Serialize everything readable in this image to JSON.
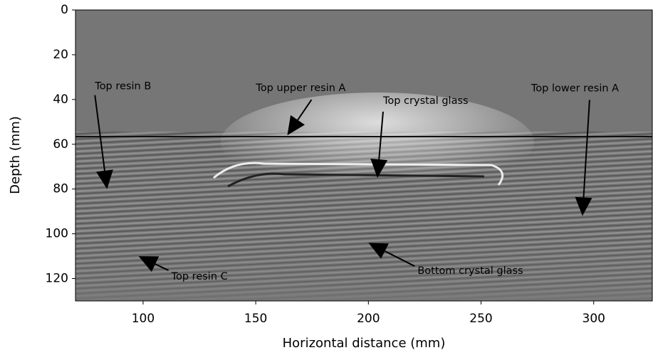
{
  "chart_data": {
    "type": "image",
    "x_label": "Horizontal distance (mm)",
    "y_label": "Depth (mm)",
    "xlim": [
      70,
      326
    ],
    "ylim": [
      130,
      0
    ],
    "xticks": [
      100,
      150,
      200,
      250,
      300
    ],
    "yticks": [
      0,
      20,
      40,
      60,
      80,
      100,
      120
    ],
    "annotations": [
      {
        "text": "Top resin B",
        "xy": [
          84,
          80
        ]
      },
      {
        "text": "Top upper resin A",
        "xy": [
          164,
          56
        ]
      },
      {
        "text": "Top crystal glass",
        "xy": [
          204,
          75
        ]
      },
      {
        "text": "Top lower resin A",
        "xy": [
          295,
          92
        ]
      },
      {
        "text": "Top resin C",
        "xy": [
          98,
          110
        ]
      },
      {
        "text": "Bottom crystal glass",
        "xy": [
          200,
          104
        ]
      }
    ]
  }
}
